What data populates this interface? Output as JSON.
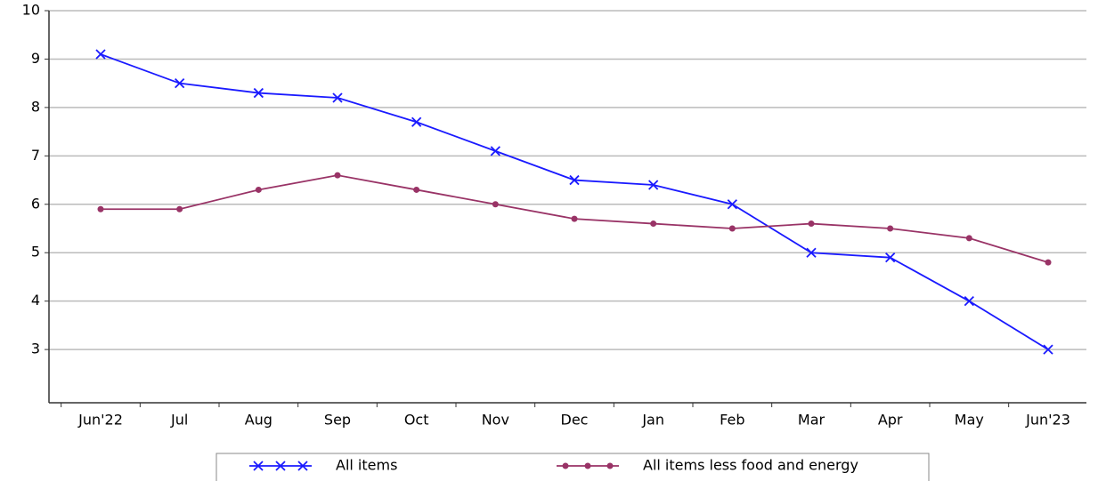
{
  "chart_data": {
    "type": "line",
    "categories": [
      "Jun'22",
      "Jul",
      "Aug",
      "Sep",
      "Oct",
      "Nov",
      "Dec",
      "Jan",
      "Feb",
      "Mar",
      "Apr",
      "May",
      "Jun'23"
    ],
    "series": [
      {
        "name": "All items",
        "color": "#1a1aff",
        "marker": "x",
        "values": [
          9.1,
          8.5,
          8.3,
          8.2,
          7.7,
          7.1,
          6.5,
          6.4,
          6.0,
          5.0,
          4.9,
          4.0,
          3.0
        ]
      },
      {
        "name": "All items less food and energy",
        "color": "#993366",
        "marker": "circle",
        "values": [
          5.9,
          5.9,
          6.3,
          6.6,
          6.3,
          6.0,
          5.7,
          5.6,
          5.5,
          5.6,
          5.5,
          5.3,
          4.8
        ]
      }
    ],
    "ylim": [
      1.9,
      10
    ],
    "yticks": [
      3,
      4,
      5,
      6,
      7,
      8,
      9,
      10
    ],
    "grid": true
  }
}
